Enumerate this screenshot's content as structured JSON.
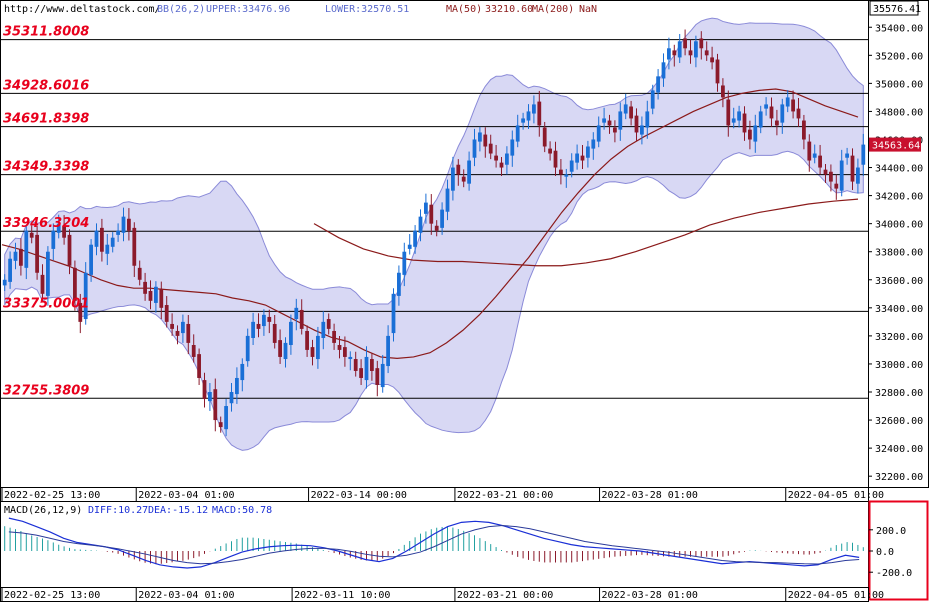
{
  "header": {
    "url": "http://www.deltastock.com/",
    "bb_label": "BB(26,2)",
    "upper_label": "UPPER:33476.96",
    "lower_label": "LOWER:32570.51",
    "ma50_label": "MA(50)",
    "ma50_value": "33210.60",
    "ma200_label": "MA(200)",
    "ma200_value": "NaN"
  },
  "macd_header": {
    "title": "MACD(26,12,9)",
    "diff": "DIFF:10.27",
    "dea": "DEA:-15.12",
    "macd": "MACD:50.78"
  },
  "colors": {
    "candle_up": "#1a6fd6",
    "candle_down": "#8b1a2b",
    "band_fill": "#d8d8f4",
    "band_line": "#8a8ad8",
    "ma50": "#8b1a1a",
    "ma200": "#8b1a1a",
    "level_label": "#e8001c",
    "macd_pos": "#20a0a0",
    "macd_neg": "#8b1a2b",
    "signal_line": "#1a2fd6"
  },
  "chart_data": [
    {
      "type": "candlestick",
      "price_axis": {
        "ylim": [
          32130,
          35580
        ],
        "ticks": [
          "35400.00",
          "35200.00",
          "35000.00",
          "34800.00",
          "34600.00",
          "34400.00",
          "34200.00",
          "34000.00",
          "33800.00",
          "33600.00",
          "33400.00",
          "33200.00",
          "33000.00",
          "32800.00",
          "32600.00",
          "32400.00",
          "32200.00"
        ],
        "tick_values": [
          35400,
          35200,
          35000,
          34800,
          34600,
          34400,
          34200,
          34000,
          33800,
          33600,
          33400,
          33200,
          33000,
          32800,
          32600,
          32400,
          32200
        ],
        "top_readout": "35576.41",
        "last_price": "34563.64",
        "last_price_value": 34563.64
      },
      "time_axis": {
        "labels": [
          "2022-02-25 13:00",
          "2022-03-04 01:00",
          "2022-03-14 00:00",
          "2022-03-21 00:00",
          "2022-03-28 01:00",
          "2022-04-05 01:00"
        ],
        "label_positions": [
          0.0,
          0.155,
          0.354,
          0.523,
          0.69,
          0.905
        ]
      },
      "levels": [
        {
          "label": "35311.8008",
          "value": 35311.8008
        },
        {
          "label": "34928.6016",
          "value": 34928.6016
        },
        {
          "label": "34691.8398",
          "value": 34691.8398
        },
        {
          "label": "34349.3398",
          "value": 34349.3398
        },
        {
          "label": "33946.3204",
          "value": 33946.3204
        },
        {
          "label": "33375.0001",
          "value": 33375.0001
        },
        {
          "label": "32755.3809",
          "value": 32755.3809
        }
      ],
      "close": [
        33600,
        33750,
        33800,
        33700,
        33950,
        33900,
        33650,
        33500,
        33800,
        33950,
        34000,
        33900,
        33700,
        33450,
        33300,
        33650,
        33850,
        33950,
        33800,
        33850,
        33900,
        33950,
        34050,
        33950,
        33700,
        33600,
        33500,
        33450,
        33550,
        33400,
        33300,
        33250,
        33200,
        33300,
        33150,
        33050,
        32900,
        32750,
        32800,
        32600,
        32550,
        32700,
        32800,
        32900,
        33000,
        33200,
        33300,
        33250,
        33350,
        33300,
        33150,
        33050,
        33150,
        33300,
        33400,
        33250,
        33100,
        33050,
        33200,
        33300,
        33250,
        33150,
        33100,
        33050,
        33050,
        32950,
        32900,
        33050,
        32950,
        32850,
        33000,
        33200,
        33500,
        33650,
        33800,
        33850,
        33950,
        34050,
        34150,
        34000,
        33950,
        34100,
        34250,
        34400,
        34350,
        34300,
        34450,
        34600,
        34650,
        34550,
        34500,
        34450,
        34400,
        34500,
        34600,
        34700,
        34750,
        34800,
        34850,
        34700,
        34550,
        34500,
        34400,
        34350,
        34350,
        34450,
        34500,
        34450,
        34550,
        34600,
        34700,
        34750,
        34700,
        34650,
        34800,
        34850,
        34750,
        34650,
        34700,
        34800,
        34950,
        35050,
        35150,
        35250,
        35200,
        35300,
        35250,
        35200,
        35300,
        35250,
        35200,
        35150,
        35000,
        34900,
        34700,
        34750,
        34800,
        34650,
        34600,
        34700,
        34800,
        34850,
        34750,
        34700,
        34850,
        34900,
        34800,
        34750,
        34600,
        34450,
        34500,
        34400,
        34350,
        34300,
        34250,
        34450,
        34500,
        34300,
        34400,
        34563.64
      ],
      "ma50": [
        33850,
        33820,
        33780,
        33740,
        33700,
        33650,
        33600,
        33560,
        33540,
        33540,
        33530,
        33520,
        33510,
        33500,
        33470,
        33450,
        33420,
        33360,
        33300,
        33240,
        33190,
        33160,
        33100,
        33050,
        33040,
        33050,
        33080,
        33150,
        33240,
        33350,
        33480,
        33620,
        33760,
        33920,
        34080,
        34220,
        34350,
        34460,
        34550,
        34620,
        34680,
        34740,
        34800,
        34850,
        34900,
        34930,
        34950,
        34960,
        34940,
        34890,
        34840,
        34800,
        34760
      ],
      "ma200": [
        34000,
        33900,
        33820,
        33770,
        33740,
        33730,
        33730,
        33720,
        33710,
        33700,
        33700,
        33720,
        33750,
        33800,
        33860,
        33920,
        33990,
        34040,
        34080,
        34110,
        34140,
        34160,
        34175
      ]
    },
    {
      "type": "macd",
      "ylim": [
        -330,
        330
      ],
      "ticks": [
        "200.0",
        "0.0",
        "-200.0"
      ],
      "tick_values": [
        200,
        0,
        -200
      ],
      "time_axis": {
        "labels": [
          "2022-02-25 13:00",
          "2022-03-04 01:00",
          "2022-03-11 10:00",
          "2022-03-21 00:00",
          "2022-03-28 01:00",
          "2022-04-05 01:00"
        ],
        "label_positions": [
          0.0,
          0.155,
          0.335,
          0.523,
          0.69,
          0.905
        ]
      },
      "diff": [
        310,
        280,
        230,
        180,
        120,
        80,
        60,
        40,
        10,
        -40,
        -90,
        -130,
        -150,
        -160,
        -150,
        -110,
        -60,
        -10,
        20,
        40,
        50,
        55,
        50,
        30,
        0,
        -40,
        -80,
        -100,
        -70,
        0,
        80,
        160,
        230,
        270,
        280,
        270,
        240,
        200,
        160,
        120,
        90,
        60,
        40,
        30,
        20,
        10,
        0,
        -20,
        -40,
        -60,
        -80,
        -100,
        -120,
        -110,
        -100,
        -110,
        -120,
        -130,
        -140,
        -130,
        -80,
        -40,
        -60
      ],
      "dea": [
        180,
        170,
        150,
        120,
        90,
        70,
        55,
        40,
        20,
        -5,
        -30,
        -60,
        -90,
        -110,
        -120,
        -115,
        -100,
        -80,
        -50,
        -20,
        0,
        15,
        25,
        25,
        15,
        -5,
        -30,
        -50,
        -55,
        -40,
        -10,
        40,
        100,
        160,
        200,
        230,
        240,
        230,
        210,
        180,
        150,
        120,
        90,
        70,
        50,
        35,
        20,
        5,
        -10,
        -30,
        -50,
        -70,
        -90,
        -100,
        -105,
        -108,
        -110,
        -115,
        -120,
        -122,
        -110,
        -90,
        -80
      ]
    }
  ]
}
